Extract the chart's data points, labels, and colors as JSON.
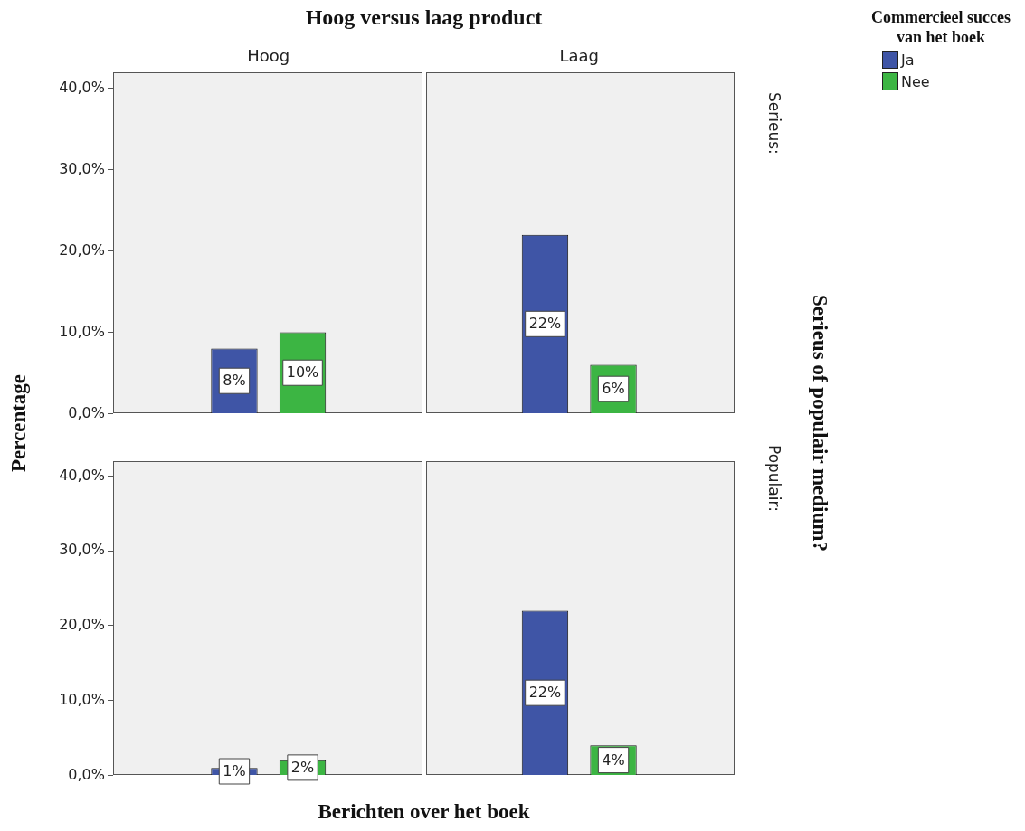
{
  "chart_data": [
    {
      "type": "bar",
      "title": "Hoog versus laag product",
      "ylabel": "Percentage",
      "y2label": "Serieus of populair medium?",
      "legend_title": "Commercieel succes van het boek",
      "legend": "right",
      "annotations": [
        "Serieus:"
      ],
      "categories": [
        "Hoog",
        "Laag"
      ],
      "series": [
        {
          "name": "Ja",
          "color": "#3f55a6",
          "values": [
            8,
            22
          ],
          "value_labels": [
            "8%",
            "22%"
          ]
        },
        {
          "name": "Nee",
          "color": "#3cb543",
          "values": [
            10,
            6
          ],
          "value_labels": [
            "10%",
            "6%"
          ]
        }
      ],
      "ylim": [
        0,
        42
      ],
      "yticks": [
        {
          "value": 0,
          "label": "0,0%"
        },
        {
          "value": 10,
          "label": "10,0%"
        },
        {
          "value": 20,
          "label": "20,0%"
        },
        {
          "value": 30,
          "label": "30,0%"
        },
        {
          "value": 40,
          "label": "40,0%"
        }
      ]
    },
    {
      "type": "bar",
      "xlabel": "Berichten over het boek",
      "annotations": [
        "Populair:"
      ],
      "categories": [
        null,
        null
      ],
      "series": [
        {
          "color": "#3f55a6",
          "values": [
            1,
            22
          ],
          "value_labels": [
            "1%",
            "22%"
          ]
        },
        {
          "color": "#3cb543",
          "values": [
            2,
            4
          ],
          "value_labels": [
            "2%",
            "4%"
          ]
        }
      ],
      "ylim": [
        0,
        42
      ],
      "yticks": [
        {
          "value": 0,
          "label": "0,0%"
        },
        {
          "value": 10,
          "label": "10,0%"
        },
        {
          "value": 20,
          "label": "20,0%"
        },
        {
          "value": 30,
          "label": "30,0%"
        },
        {
          "value": 40,
          "label": "40,0%"
        }
      ],
      "tick_labels": "y"
    }
  ]
}
